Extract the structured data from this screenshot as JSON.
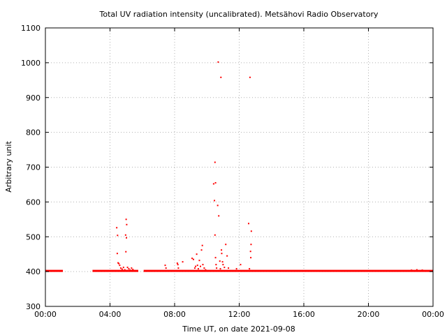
{
  "chart_data": {
    "type": "scatter",
    "title": "Total UV radiation intensity (uncalibrated). Metsähovi Radio Observatory",
    "xlabel": "Time UT, on date 2021-09-08",
    "ylabel": "Arbitrary unit",
    "xlim": [
      "00:00",
      "24:00"
    ],
    "ylim": [
      300,
      1100
    ],
    "x_ticks": [
      "00:00",
      "04:00",
      "08:00",
      "12:00",
      "16:00",
      "20:00",
      "00:00"
    ],
    "y_ticks": [
      "300",
      "400",
      "500",
      "600",
      "700",
      "800",
      "900",
      "1000",
      "1100"
    ],
    "grid": true,
    "grid_style": "dotted",
    "point_color": "#ff0000",
    "baseline": {
      "value": 402,
      "segments": [
        [
          "00:00",
          "01:05"
        ],
        [
          "02:55",
          "05:45"
        ],
        [
          "06:05",
          "24:00"
        ]
      ]
    },
    "series": [
      {
        "points": [
          [
            "04:25",
            526
          ],
          [
            "04:28",
            504
          ],
          [
            "04:27",
            452
          ],
          [
            "04:30",
            425
          ],
          [
            "04:33",
            423
          ],
          [
            "04:36",
            418
          ],
          [
            "04:40",
            410
          ],
          [
            "04:45",
            407
          ],
          [
            "04:50",
            412
          ],
          [
            "04:55",
            405
          ],
          [
            "05:00",
            550
          ],
          [
            "05:02",
            535
          ],
          [
            "04:58",
            505
          ],
          [
            "05:01",
            497
          ],
          [
            "04:59",
            457
          ],
          [
            "05:05",
            412
          ],
          [
            "05:10",
            408
          ],
          [
            "05:15",
            404
          ],
          [
            "05:20",
            410
          ],
          [
            "05:25",
            406
          ],
          [
            "07:25",
            418
          ],
          [
            "07:28",
            410
          ],
          [
            "08:10",
            424
          ],
          [
            "08:12",
            420
          ],
          [
            "08:14",
            410
          ],
          [
            "08:30",
            428
          ],
          [
            "09:05",
            438
          ],
          [
            "09:10",
            435
          ],
          [
            "09:15",
            410
          ],
          [
            "09:18",
            415
          ],
          [
            "09:22",
            450
          ],
          [
            "09:25",
            418
          ],
          [
            "09:28",
            408
          ],
          [
            "09:32",
            432
          ],
          [
            "09:36",
            415
          ],
          [
            "09:40",
            462
          ],
          [
            "09:43",
            475
          ],
          [
            "09:45",
            420
          ],
          [
            "09:50",
            410
          ],
          [
            "09:55",
            405
          ],
          [
            "10:25",
            652
          ],
          [
            "10:28",
            604
          ],
          [
            "10:30",
            714
          ],
          [
            "10:32",
            655
          ],
          [
            "10:30",
            505
          ],
          [
            "10:32",
            440
          ],
          [
            "10:34",
            420
          ],
          [
            "10:36",
            410
          ],
          [
            "10:40",
            590
          ],
          [
            "10:44",
            560
          ],
          [
            "10:48",
            430
          ],
          [
            "10:50",
            408
          ],
          [
            "10:42",
            1002
          ],
          [
            "10:52",
            958
          ],
          [
            "10:54",
            462
          ],
          [
            "10:55",
            452
          ],
          [
            "10:58",
            428
          ],
          [
            "11:00",
            420
          ],
          [
            "11:05",
            412
          ],
          [
            "11:10",
            478
          ],
          [
            "11:15",
            445
          ],
          [
            "11:20",
            410
          ],
          [
            "11:50",
            408
          ],
          [
            "12:05",
            420
          ],
          [
            "12:35",
            538
          ],
          [
            "12:40",
            958
          ],
          [
            "12:45",
            516
          ],
          [
            "12:44",
            478
          ],
          [
            "12:42",
            458
          ],
          [
            "12:43",
            440
          ],
          [
            "12:38",
            408
          ],
          [
            "22:40",
            404
          ],
          [
            "23:00",
            405
          ],
          [
            "23:20",
            404
          ]
        ]
      }
    ]
  }
}
